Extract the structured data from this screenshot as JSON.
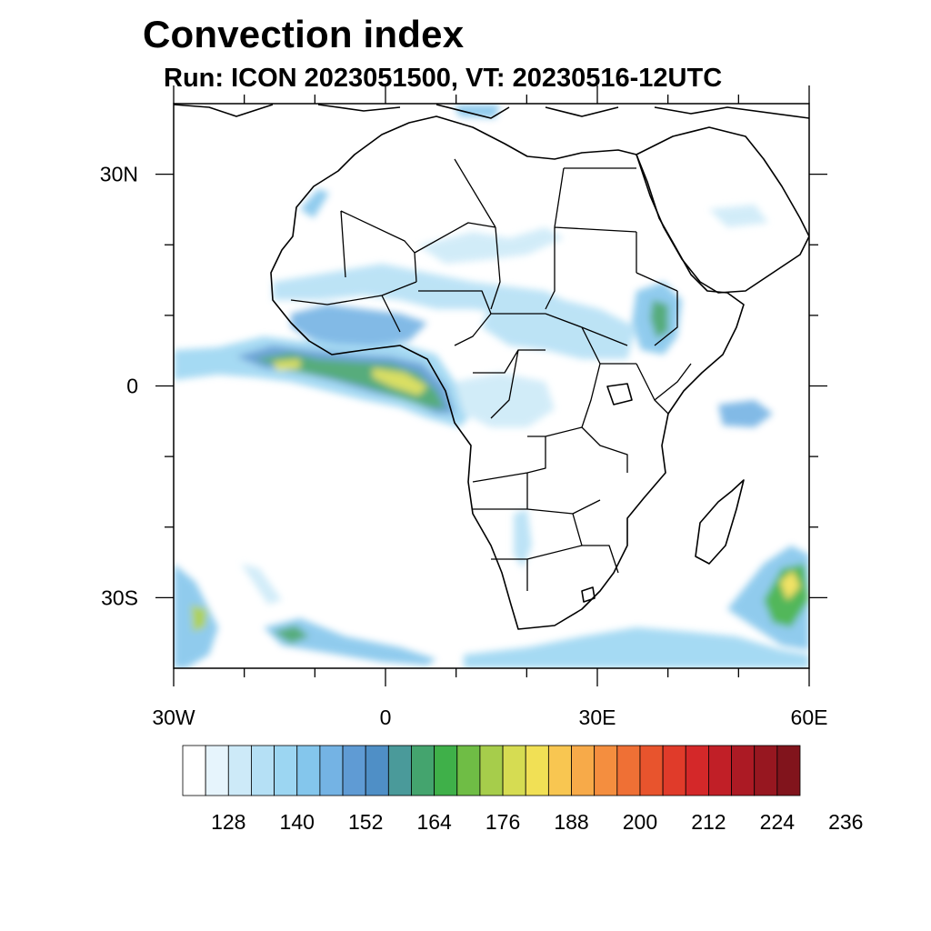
{
  "title": "Convection index",
  "subtitle": "Run: ICON 2023051500,  VT: 20230516-12UTC",
  "map": {
    "region": "Africa",
    "lon_range": [
      -30,
      60
    ],
    "lat_range": [
      -40,
      40
    ],
    "lon_labels": [
      {
        "lon": -30,
        "text": "30W"
      },
      {
        "lon": 0,
        "text": "0"
      },
      {
        "lon": 30,
        "text": "30E"
      },
      {
        "lon": 60,
        "text": "60E"
      }
    ],
    "lat_labels": [
      {
        "lat": 30,
        "text": "30N"
      },
      {
        "lat": 0,
        "text": "0"
      },
      {
        "lat": -30,
        "text": "30S"
      }
    ]
  },
  "colorbar": {
    "colors": [
      "#ffffff",
      "#e6f4fc",
      "#cdeaf8",
      "#b5e0f5",
      "#9cd6f2",
      "#84c6ec",
      "#74b3e4",
      "#5f9bd4",
      "#4f8fc6",
      "#4a9a9a",
      "#44a46e",
      "#3fb049",
      "#6fbd45",
      "#a6cd4b",
      "#d6dc52",
      "#f1e055",
      "#f8c651",
      "#f7aa49",
      "#f48e3f",
      "#ef7035",
      "#e8542d",
      "#e03b2a",
      "#d42829",
      "#c11f27",
      "#ac1a24",
      "#971720",
      "#81141c"
    ],
    "tick_labels": [
      "128",
      "140",
      "152",
      "164",
      "176",
      "188",
      "200",
      "212",
      "224",
      "236"
    ]
  }
}
